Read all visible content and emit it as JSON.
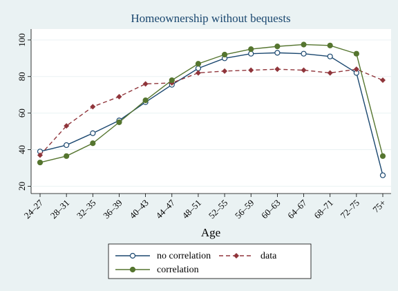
{
  "chart_data": {
    "type": "line",
    "title": "Homeownership without bequests",
    "x_label": "Age",
    "categories": [
      "24–27",
      "28–31",
      "32–35",
      "36–39",
      "40–43",
      "44–47",
      "48–51",
      "52–55",
      "56–59",
      "60–63",
      "64–67",
      "68–71",
      "72–75",
      "75+"
    ],
    "series": [
      {
        "name": "no correlation",
        "color": "#1a476f",
        "marker": "hollow-circle",
        "dash": false,
        "values": [
          39,
          42.5,
          49,
          56,
          66,
          75.5,
          84.5,
          90,
          92.5,
          93,
          92.5,
          91,
          82,
          26
        ]
      },
      {
        "name": "data",
        "color": "#90353b",
        "marker": "diamond",
        "dash": true,
        "values": [
          37,
          53,
          63.5,
          69,
          76,
          76.5,
          82,
          83,
          83.5,
          84,
          83.5,
          82,
          84,
          78
        ]
      },
      {
        "name": "correlation",
        "color": "#55752f",
        "marker": "filled-circle",
        "dash": false,
        "values": [
          33,
          36.5,
          43.5,
          55,
          67,
          78,
          87,
          92,
          95,
          96.5,
          97.5,
          97,
          92.5,
          36.5
        ]
      }
    ],
    "ylim": [
      16,
      106
    ],
    "yticks": [
      20,
      40,
      60,
      80,
      100
    ],
    "grid": true
  }
}
